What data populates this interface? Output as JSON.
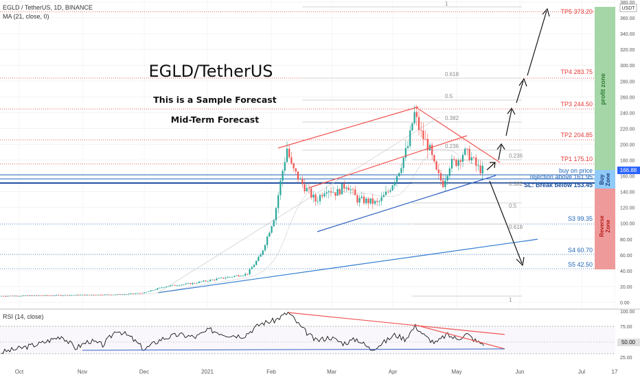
{
  "header": {
    "symbol": "EGLD / TetherUS, 1D, BINANCE",
    "ma": "MA (21, close, 0)",
    "currency": "USDT"
  },
  "annotations": {
    "title": "EGLD/TetherUS",
    "sub1": "This is a Sample Forecast",
    "sub2": "Mid-Term Forecast"
  },
  "zones": {
    "profit": "profit zone",
    "buy_line1": "Buy",
    "buy_line2": "Zone",
    "reverse_line1": "Reverse",
    "reverse_line2": "Zone"
  },
  "level_labels": {
    "tp5": "TP5 373.20",
    "tp4": "TP4 283.75",
    "tp3": "TP3 244.50",
    "tp2": "TP2 204.85",
    "tp1": "TP1 175.10",
    "buy": "buy on price",
    "rejection": "rejection above 161.95",
    "sl": "SL: Break below 153.45",
    "s3": "S3 99.35",
    "s4": "S4 60.70",
    "s5": "S5 42.50"
  },
  "fib_labels": {
    "top1": "1",
    "f618a": "0.618",
    "f5a": "0.5",
    "f382a": "0.382",
    "f236a": "0.236",
    "f236b": "0.236",
    "f382b": "0.382",
    "f5b": "0.5",
    "f618b": "0.618",
    "bot1": "1"
  },
  "price_tag": "166.88",
  "rsi": {
    "label": "RSI (14, close)",
    "tag": "50.00",
    "ticks": [
      "100.00",
      "75.00",
      "50.00",
      "25.00"
    ]
  },
  "colors": {
    "candle_up": "#26a69a",
    "candle_down": "#ef5350",
    "resistance": "#ef5350",
    "support": "#1e63b8",
    "profit_zone": "#a5d6a7",
    "buy_zone": "#90caf9",
    "reverse_zone": "#ef9a9a"
  },
  "chart_data": {
    "type": "candlestick",
    "pair": "EGLD/USDT",
    "timeframe": "1D",
    "y_axis_ticks": [
      0,
      20,
      40,
      60,
      80,
      100,
      120,
      140,
      160,
      180,
      200,
      220,
      240,
      260,
      280,
      300,
      320,
      340,
      360,
      380
    ],
    "x_axis_ticks": [
      "Oct",
      "Nov",
      "Dec",
      "2021",
      "Feb",
      "Mar",
      "Apr",
      "May",
      "Jun",
      "Jul",
      "17"
    ],
    "levels": [
      {
        "name": "TP5",
        "value": 373.2
      },
      {
        "name": "TP4",
        "value": 283.75
      },
      {
        "name": "TP3",
        "value": 244.5
      },
      {
        "name": "TP2",
        "value": 204.85
      },
      {
        "name": "TP1",
        "value": 175.1
      },
      {
        "name": "buy",
        "value": 166.88
      },
      {
        "name": "rejection",
        "value": 161.95
      },
      {
        "name": "SL",
        "value": 153.45
      },
      {
        "name": "S3",
        "value": 99.35
      },
      {
        "name": "S4",
        "value": 60.7
      },
      {
        "name": "S5",
        "value": 42.5
      }
    ],
    "last_price": 166.88,
    "rsi_ticks": [
      100,
      75,
      50,
      25
    ]
  }
}
